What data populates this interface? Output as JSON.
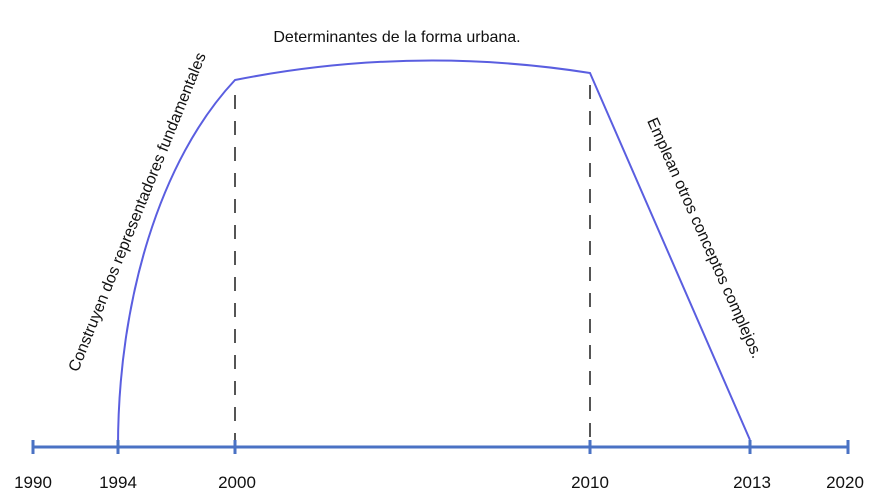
{
  "title": "Determinantes de la forma urbana.",
  "left_label": "Construyen dos representadores fundamentales",
  "right_label": "Emplean otros conceptos complejos.",
  "timeline": {
    "years": [
      "1990",
      "1994",
      "2000",
      "2010",
      "2013",
      "2020"
    ]
  }
}
